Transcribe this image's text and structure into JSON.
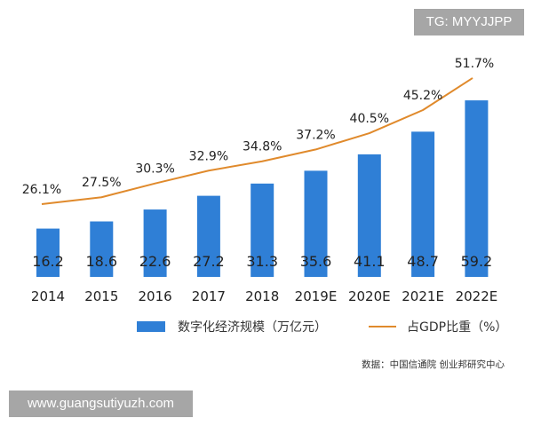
{
  "chart_data": {
    "type": "bar+line",
    "categories": [
      "2014",
      "2015",
      "2016",
      "2017",
      "2018",
      "2019E",
      "2020E",
      "2021E",
      "2022E"
    ],
    "series": [
      {
        "name": "数字化经济规模（万亿元）",
        "type": "bar",
        "color": "#2f7fd6",
        "values": [
          16.2,
          18.6,
          22.6,
          27.2,
          31.3,
          35.6,
          41.1,
          48.7,
          59.2
        ]
      },
      {
        "name": "占GDP比重（%）",
        "type": "line",
        "color": "#e08a2c",
        "values": [
          26.1,
          27.5,
          30.3,
          32.9,
          34.8,
          37.2,
          40.5,
          45.2,
          51.7
        ]
      }
    ],
    "source": "数据：中国信通院 创业邦研究中心",
    "grid": false,
    "legend_position": "bottom"
  },
  "watermarks": {
    "tg": "TG: MYYJJPP",
    "site": "www.guangsutiyuzh.com"
  }
}
